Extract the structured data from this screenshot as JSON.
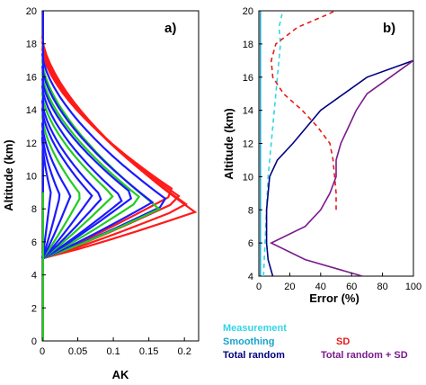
{
  "chart_data": [
    {
      "type": "line",
      "panel_label": "a)",
      "xlabel": "AK",
      "ylabel": "Altitude (km)",
      "xlim": [
        0,
        0.22
      ],
      "ylim": [
        0,
        20
      ],
      "x_ticks": [
        "0",
        "0.05",
        "0.1",
        "0.15",
        "0.2"
      ],
      "y_ticks": [
        "0",
        "2",
        "4",
        "6",
        "8",
        "10",
        "12",
        "14",
        "16",
        "18",
        "20"
      ],
      "grid": false,
      "series_colors": [
        "#ff1a1a",
        "#1a1aff",
        "#22cc22"
      ],
      "kernels": [
        {
          "color": "#ff1a1a",
          "peak_altitude": 7.8,
          "peak_ak": 0.215
        },
        {
          "color": "#ff1a1a",
          "peak_altitude": 8.2,
          "peak_ak": 0.205
        },
        {
          "color": "#ff1a1a",
          "peak_altitude": 8.6,
          "peak_ak": 0.198
        },
        {
          "color": "#ff1a1a",
          "peak_altitude": 9.0,
          "peak_ak": 0.19
        },
        {
          "color": "#1a1aff",
          "peak_altitude": 8.4,
          "peak_ak": 0.18
        },
        {
          "color": "#22cc22",
          "peak_altitude": 8.0,
          "peak_ak": 0.165
        },
        {
          "color": "#1a1aff",
          "peak_altitude": 8.4,
          "peak_ak": 0.155
        },
        {
          "color": "#22cc22",
          "peak_altitude": 8.6,
          "peak_ak": 0.14
        },
        {
          "color": "#1a1aff",
          "peak_altitude": 8.8,
          "peak_ak": 0.13
        },
        {
          "color": "#1a1aff",
          "peak_altitude": 8.6,
          "peak_ak": 0.115
        },
        {
          "color": "#22cc22",
          "peak_altitude": 8.8,
          "peak_ak": 0.1
        },
        {
          "color": "#1a1aff",
          "peak_altitude": 8.7,
          "peak_ak": 0.085
        },
        {
          "color": "#1a1aff",
          "peak_altitude": 8.8,
          "peak_ak": 0.07
        },
        {
          "color": "#22cc22",
          "peak_altitude": 8.8,
          "peak_ak": 0.055
        },
        {
          "color": "#1a1aff",
          "peak_altitude": 8.8,
          "peak_ak": 0.04
        },
        {
          "color": "#1a1aff",
          "peak_altitude": 8.8,
          "peak_ak": 0.025
        },
        {
          "color": "#1a1aff",
          "peak_altitude": 9.0,
          "peak_ak": 0.012
        }
      ]
    },
    {
      "type": "line",
      "panel_label": "b)",
      "xlabel": "Error (%)",
      "ylabel": "Altitude (km)",
      "xlim": [
        0,
        100
      ],
      "ylim": [
        4,
        20
      ],
      "x_ticks": [
        "0",
        "20",
        "40",
        "60",
        "80",
        "100"
      ],
      "y_ticks": [
        "4",
        "6",
        "8",
        "10",
        "12",
        "14",
        "16",
        "18",
        "20"
      ],
      "grid": false,
      "series": [
        {
          "name": "Measurement",
          "color": "#33d6e6",
          "dash": "dash",
          "x": [
            3,
            4,
            5,
            6,
            8,
            10,
            12,
            14,
            13,
            15
          ],
          "y": [
            4,
            6,
            8,
            10,
            12,
            14,
            16,
            18,
            19,
            19.8
          ]
        },
        {
          "name": "Smoothing",
          "color": "#1aa3cc",
          "dash": "solid",
          "x": [
            1,
            1,
            1,
            1,
            1,
            1,
            1,
            1,
            1,
            1
          ],
          "y": [
            4,
            6,
            8,
            10,
            12,
            14,
            16,
            18,
            19,
            20
          ]
        },
        {
          "name": "SD",
          "color": "#e61a1a",
          "dash": "dash",
          "x": [
            50,
            50,
            49,
            48,
            46,
            38,
            28,
            16,
            9,
            8,
            11,
            25,
            45,
            60
          ],
          "y": [
            8,
            9,
            10,
            11,
            12,
            13,
            14,
            15,
            16,
            17,
            18,
            19,
            19.8,
            20.5
          ]
        },
        {
          "name": "Total random",
          "color": "#000080",
          "dash": "solid",
          "x": [
            9,
            6,
            5,
            5,
            7,
            12,
            22,
            40,
            70,
            100
          ],
          "y": [
            4,
            5,
            6,
            8,
            10,
            11,
            12,
            14,
            16,
            17
          ]
        },
        {
          "name": "Total random + SD",
          "color": "#7a1a8c",
          "dash": "solid",
          "x": [
            67,
            30,
            8,
            30,
            40,
            46,
            50,
            50,
            53,
            58,
            63,
            70,
            85,
            100
          ],
          "y": [
            4,
            5,
            6,
            7,
            8,
            9,
            10,
            11,
            12,
            13,
            14,
            15,
            16,
            17
          ]
        }
      ]
    }
  ],
  "legend": {
    "measurement": "Measurement",
    "smoothing": "Smoothing",
    "total_random": "Total random",
    "sd": "SD",
    "total_random_sd": "Total random + SD"
  }
}
